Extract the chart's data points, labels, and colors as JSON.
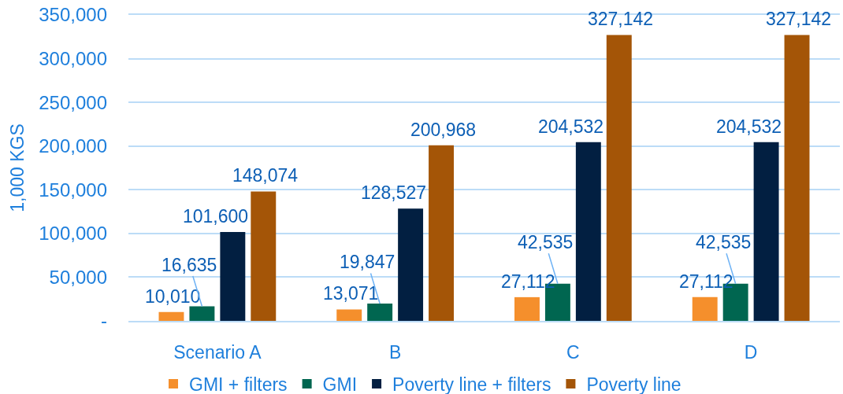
{
  "chart_data": {
    "type": "bar",
    "ylabel": "1,000 KGS",
    "categories": [
      "Scenario A",
      "B",
      "C",
      "D"
    ],
    "series": [
      {
        "name": "GMI + filters",
        "color": "#f58f2c",
        "values": [
          10010,
          13071,
          27112,
          27112
        ],
        "value_labels": [
          "10,010",
          "13,071",
          "27,112",
          "27,112"
        ]
      },
      {
        "name": "GMI",
        "color": "#006650",
        "values": [
          16635,
          19847,
          42535,
          42535
        ],
        "value_labels": [
          "16,635",
          "19,847",
          "42,535",
          "42,535"
        ]
      },
      {
        "name": "Poverty line + filters",
        "color": "#021f41",
        "values": [
          101600,
          128527,
          204532,
          204532
        ],
        "value_labels": [
          "101,600",
          "128,527",
          "204,532",
          "204,532"
        ]
      },
      {
        "name": "Poverty line",
        "color": "#a45507",
        "values": [
          148074,
          200968,
          327142,
          327142
        ],
        "value_labels": [
          "148,074",
          "200,968",
          "327,142",
          "327,142"
        ]
      }
    ],
    "ylim": [
      0,
      350000
    ],
    "yticks": [
      {
        "value": 0,
        "label": "-"
      },
      {
        "value": 50000,
        "label": "50,000"
      },
      {
        "value": 100000,
        "label": "100,000"
      },
      {
        "value": 150000,
        "label": "150,000"
      },
      {
        "value": 200000,
        "label": "200,000"
      },
      {
        "value": 250000,
        "label": "250,000"
      },
      {
        "value": 300000,
        "label": "300,000"
      },
      {
        "value": 350000,
        "label": "350,000"
      }
    ],
    "grid": "y",
    "legend": "bottom"
  }
}
